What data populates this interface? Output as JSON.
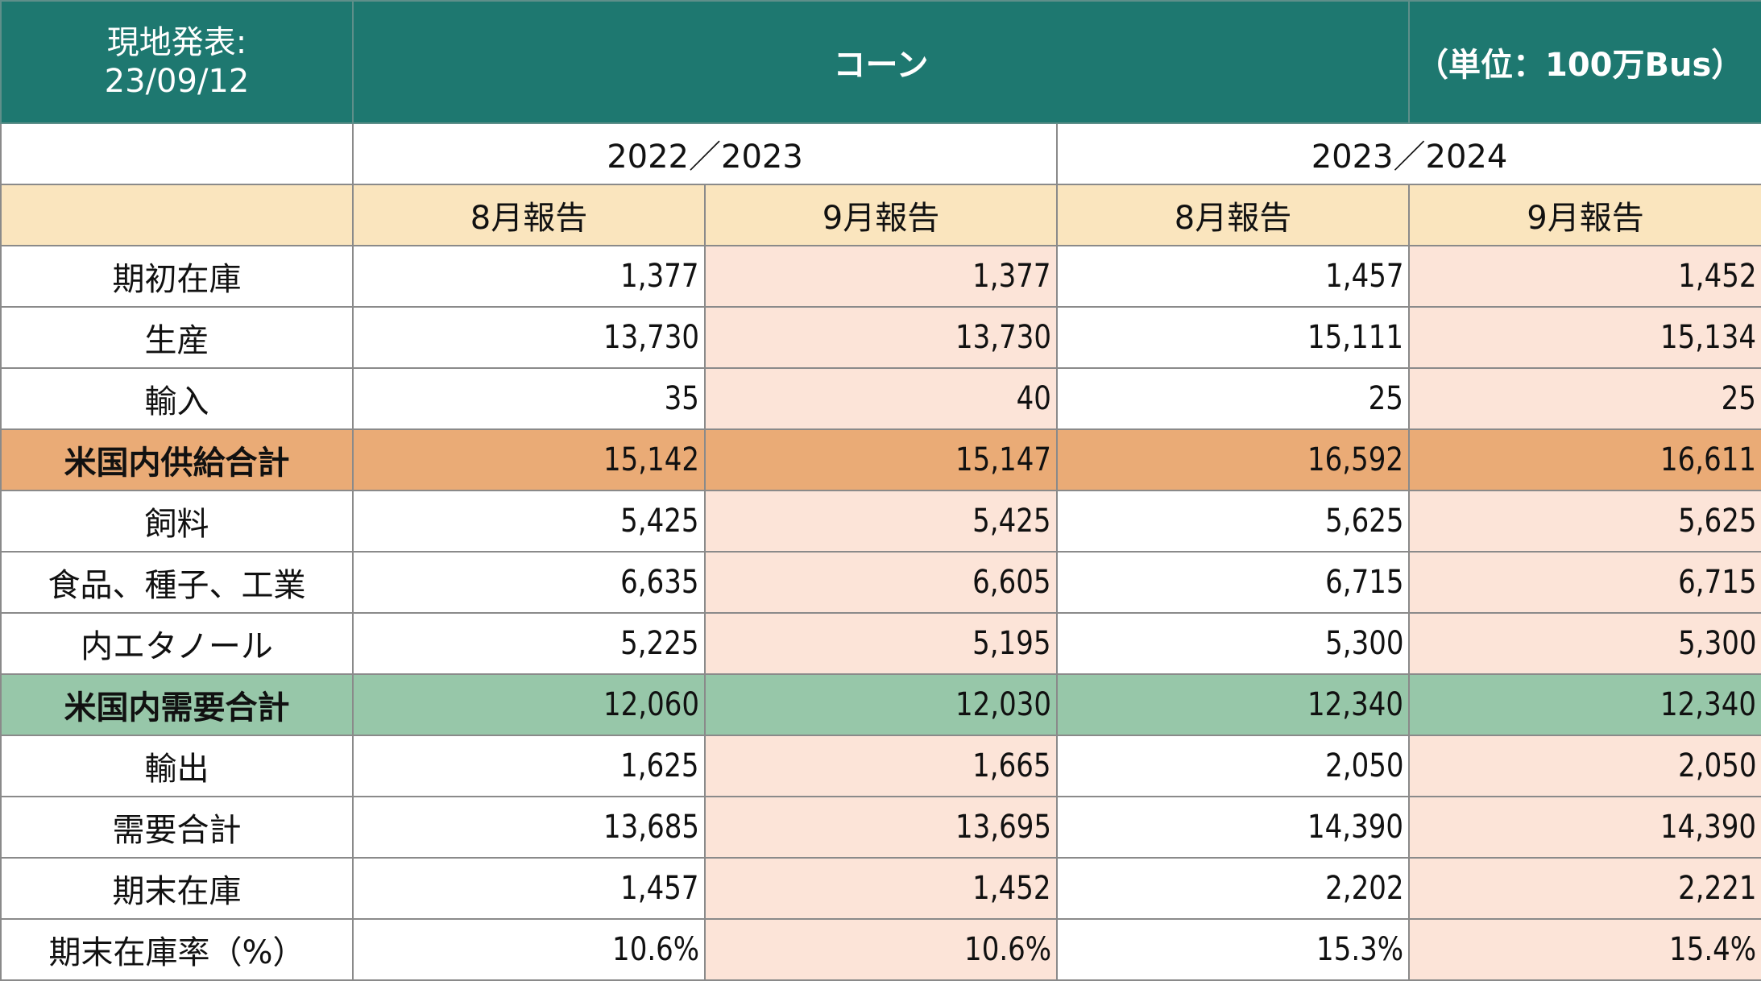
{
  "header": {
    "release_label": "現地発表:",
    "release_date": "23/09/12",
    "commodity": "コーン",
    "unit": "（単位：100万Bus）"
  },
  "years": [
    "2022／2023",
    "2023／2024"
  ],
  "reports": [
    "8月報告",
    "9月報告",
    "8月報告",
    "9月報告"
  ],
  "colors": {
    "header_bg": "#1e7870",
    "subheader_bg": "#fae5be",
    "september_col_bg": "#fce4d8",
    "supply_total_bg": "#eaab76",
    "demand_total_bg": "#97c7a9"
  },
  "rows": [
    {
      "label": "期初在庫",
      "values": [
        "1,377",
        "1,377",
        "1,457",
        "1,452"
      ]
    },
    {
      "label": "生産",
      "values": [
        "13,730",
        "13,730",
        "15,111",
        "15,134"
      ]
    },
    {
      "label": "輸入",
      "values": [
        "35",
        "40",
        "25",
        "25"
      ]
    },
    {
      "label": "米国内供給合計",
      "values": [
        "15,142",
        "15,147",
        "16,592",
        "16,611"
      ]
    },
    {
      "label": "飼料",
      "values": [
        "5,425",
        "5,425",
        "5,625",
        "5,625"
      ]
    },
    {
      "label": "食品、種子、工業",
      "values": [
        "6,635",
        "6,605",
        "6,715",
        "6,715"
      ]
    },
    {
      "label": "内エタノール",
      "values": [
        "5,225",
        "5,195",
        "5,300",
        "5,300"
      ]
    },
    {
      "label": "米国内需要合計",
      "values": [
        "12,060",
        "12,030",
        "12,340",
        "12,340"
      ]
    },
    {
      "label": "輸出",
      "values": [
        "1,625",
        "1,665",
        "2,050",
        "2,050"
      ]
    },
    {
      "label": "需要合計",
      "values": [
        "13,685",
        "13,695",
        "14,390",
        "14,390"
      ]
    },
    {
      "label": "期末在庫",
      "values": [
        "1,457",
        "1,452",
        "2,202",
        "2,221"
      ]
    },
    {
      "label": "期末在庫率（%）",
      "values": [
        "10.6%",
        "10.6%",
        "15.3%",
        "15.4%"
      ]
    }
  ]
}
